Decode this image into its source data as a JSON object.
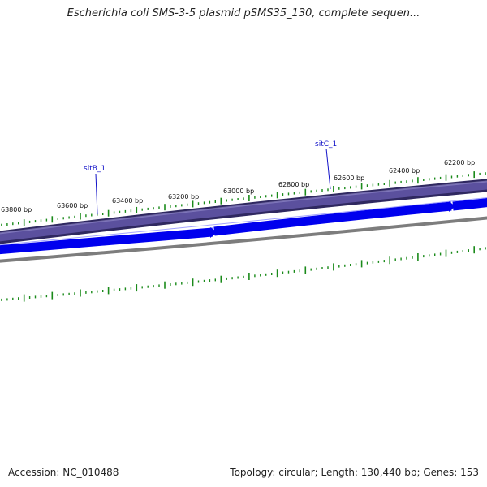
{
  "header": {
    "title": "Escherichia coli SMS-3-5 plasmid pSMS35_130, complete sequen..."
  },
  "footer": {
    "accession": "Accession: NC_010488",
    "summary": "Topology: circular; Length: 130,440 bp; Genes: 153"
  },
  "map": {
    "tick_labels": [
      "63800 bp",
      "63600 bp",
      "63400 bp",
      "63200 bp",
      "63000 bp",
      "62800 bp",
      "62600 bp",
      "62400 bp",
      "62200 bp"
    ],
    "genes": [
      {
        "name": "sitB_1"
      },
      {
        "name": "sitC_1"
      }
    ],
    "colors": {
      "outer_band": "#5a4e9c",
      "outer_band_edge": "#2f2860",
      "gene_arrows": "#0000ee",
      "backbone": "#888888",
      "ticks": "#1a8a1a",
      "gene_label": "#1010c8"
    }
  }
}
